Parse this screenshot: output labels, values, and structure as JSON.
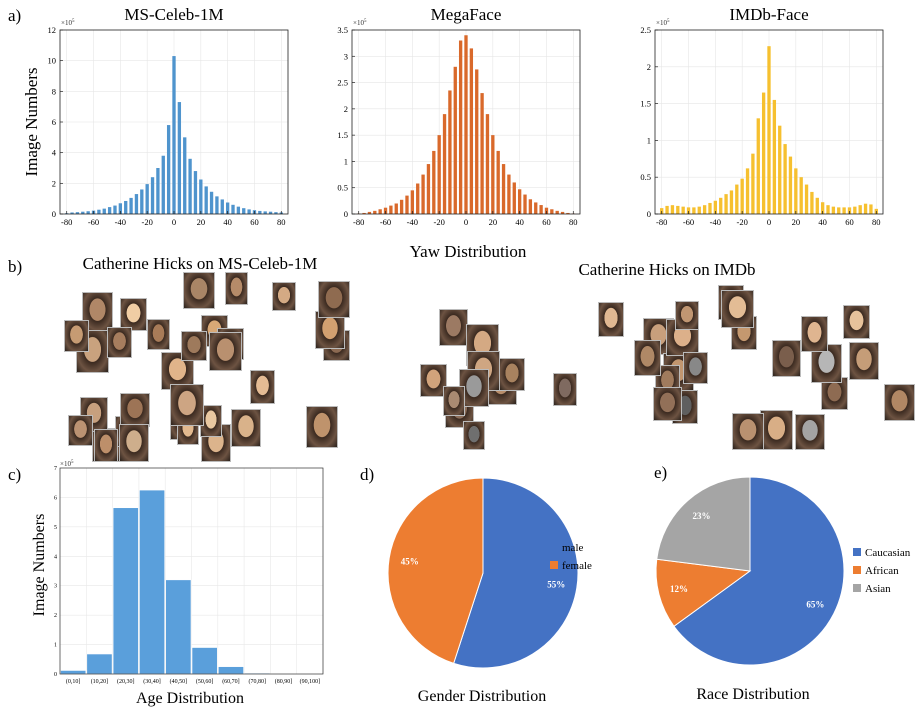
{
  "panels": {
    "a": {
      "tag": "a)",
      "ylabel": "Image Numbers",
      "xlabel": "Yaw Distribution"
    },
    "b": {
      "tag": "b)",
      "left_title": "Catherine Hicks on MS-Celeb-1M",
      "right_title": "Catherine Hicks on IMDb"
    },
    "c": {
      "tag": "c)"
    },
    "d": {
      "tag": "d)"
    },
    "e": {
      "tag": "e)"
    }
  },
  "chart_data": [
    {
      "id": "yaw-ms",
      "type": "bar",
      "title": "MS-Celeb-1M",
      "color": "#4f94cd",
      "xlim": [
        -85,
        85
      ],
      "ylim": [
        0,
        12
      ],
      "exponent": "×10^5",
      "x_ticks": [
        -80,
        -60,
        -40,
        -20,
        0,
        20,
        40,
        60,
        80
      ],
      "y_ticks": [
        0,
        2,
        4,
        6,
        8,
        10,
        12
      ],
      "x": [
        -80,
        -76,
        -72,
        -68,
        -64,
        -60,
        -56,
        -52,
        -48,
        -44,
        -40,
        -36,
        -32,
        -28,
        -24,
        -20,
        -16,
        -12,
        -8,
        -4,
        0,
        4,
        8,
        12,
        16,
        20,
        24,
        28,
        32,
        36,
        40,
        44,
        48,
        52,
        56,
        60,
        64,
        68,
        72,
        76,
        80
      ],
      "values": [
        0.05,
        0.1,
        0.12,
        0.15,
        0.18,
        0.22,
        0.28,
        0.35,
        0.45,
        0.55,
        0.7,
        0.85,
        1.05,
        1.3,
        1.6,
        1.95,
        2.4,
        3.0,
        3.8,
        5.8,
        10.3,
        7.3,
        5.0,
        3.6,
        2.8,
        2.25,
        1.8,
        1.45,
        1.15,
        0.95,
        0.75,
        0.6,
        0.48,
        0.38,
        0.3,
        0.25,
        0.2,
        0.17,
        0.15,
        0.12,
        0.1
      ]
    },
    {
      "id": "yaw-mega",
      "type": "bar",
      "title": "MegaFace",
      "color": "#d9692b",
      "xlim": [
        -85,
        85
      ],
      "ylim": [
        0,
        3.5
      ],
      "exponent": "×10^5",
      "x_ticks": [
        -80,
        -60,
        -40,
        -20,
        0,
        20,
        40,
        60,
        80
      ],
      "y_ticks": [
        0,
        0.5,
        1,
        1.5,
        2,
        2.5,
        3,
        3.5
      ],
      "x": [
        -80,
        -76,
        -72,
        -68,
        -64,
        -60,
        -56,
        -52,
        -48,
        -44,
        -40,
        -36,
        -32,
        -28,
        -24,
        -20,
        -16,
        -12,
        -8,
        -4,
        0,
        4,
        8,
        12,
        16,
        20,
        24,
        28,
        32,
        36,
        40,
        44,
        48,
        52,
        56,
        60,
        64,
        68,
        72,
        76,
        80
      ],
      "values": [
        0.01,
        0.02,
        0.04,
        0.06,
        0.09,
        0.12,
        0.16,
        0.2,
        0.27,
        0.35,
        0.45,
        0.58,
        0.75,
        0.95,
        1.2,
        1.5,
        1.9,
        2.35,
        2.8,
        3.3,
        3.4,
        3.15,
        2.75,
        2.3,
        1.9,
        1.5,
        1.2,
        0.95,
        0.75,
        0.6,
        0.47,
        0.37,
        0.28,
        0.22,
        0.17,
        0.12,
        0.09,
        0.06,
        0.04,
        0.02,
        0.01
      ]
    },
    {
      "id": "yaw-imdb",
      "type": "bar",
      "title": "IMDb-Face",
      "color": "#f6c02f",
      "xlim": [
        -85,
        85
      ],
      "ylim": [
        0,
        2.5
      ],
      "exponent": "×10^5",
      "x_ticks": [
        -80,
        -60,
        -40,
        -20,
        0,
        20,
        40,
        60,
        80
      ],
      "y_ticks": [
        0,
        0.5,
        1,
        1.5,
        2,
        2.5
      ],
      "x": [
        -80,
        -76,
        -72,
        -68,
        -64,
        -60,
        -56,
        -52,
        -48,
        -44,
        -40,
        -36,
        -32,
        -28,
        -24,
        -20,
        -16,
        -12,
        -8,
        -4,
        0,
        4,
        8,
        12,
        16,
        20,
        24,
        28,
        32,
        36,
        40,
        44,
        48,
        52,
        56,
        60,
        64,
        68,
        72,
        76,
        80
      ],
      "values": [
        0.08,
        0.11,
        0.12,
        0.11,
        0.1,
        0.09,
        0.09,
        0.1,
        0.12,
        0.15,
        0.18,
        0.22,
        0.27,
        0.32,
        0.4,
        0.48,
        0.62,
        0.82,
        1.3,
        1.65,
        2.28,
        1.55,
        1.2,
        0.95,
        0.78,
        0.62,
        0.5,
        0.4,
        0.3,
        0.22,
        0.16,
        0.12,
        0.1,
        0.09,
        0.09,
        0.09,
        0.1,
        0.12,
        0.14,
        0.13,
        0.07
      ]
    },
    {
      "id": "age",
      "type": "bar",
      "title": "",
      "color": "#5a9fdb",
      "xlabel": "Age Distribution",
      "ylabel": "Image Numbers",
      "exponent": "×10^5",
      "ylim": [
        0,
        7
      ],
      "y_ticks": [
        0,
        1,
        2,
        3,
        4,
        5,
        6,
        7
      ],
      "categories": [
        "(0,10]",
        "(10,20]",
        "(20,30]",
        "(30,40]",
        "(40,50]",
        "(50,60]",
        "(60,70]",
        "(70,80]",
        "(80,90]",
        "(90,100]"
      ],
      "values": [
        0.12,
        0.68,
        5.65,
        6.25,
        3.2,
        0.9,
        0.25,
        0.03,
        0.0,
        0.0
      ]
    },
    {
      "id": "gender",
      "type": "pie",
      "title": "Gender Distribution",
      "labels": [
        "male",
        "female"
      ],
      "values": [
        55,
        45
      ],
      "value_labels": [
        "55%",
        "45%"
      ],
      "colors": [
        "#4472c4",
        "#ed7d31"
      ],
      "legend": "right"
    },
    {
      "id": "race",
      "type": "pie",
      "title": "Race Distribution",
      "labels": [
        "Caucasian",
        "African",
        "Asian"
      ],
      "values": [
        65,
        12,
        23
      ],
      "value_labels": [
        "65%",
        "12%",
        "23%"
      ],
      "colors": [
        "#4472c4",
        "#ed7d31",
        "#a5a5a5"
      ],
      "legend": "right"
    }
  ],
  "faces": {
    "left": [
      "#c9a27e",
      "#e0b48a",
      "#b98a63",
      "#d8a876",
      "#a87b58",
      "#cfa37d",
      "#e6c29a",
      "#b08767",
      "#8c6a52",
      "#d2a070",
      "#c48f66",
      "#f0cda4",
      "#9d7456",
      "#bf936c",
      "#dcb48c",
      "#a67d5e",
      "#ceae8c",
      "#b9906f",
      "#e2b98f",
      "#c7a07e",
      "#8f6b50",
      "#d9b28a",
      "#bd8f6a",
      "#e8c7a0",
      "#a98566",
      "#c69b73",
      "#d4aa84",
      "#b58b69",
      "#9e7a5c",
      "#cda583",
      "#e4bb94",
      "#bb9272"
    ],
    "right": [
      "#b88d6a",
      "#9c7a63",
      "#d4a983",
      "#7f6a60",
      "#c89f7c",
      "#a4a4a4",
      "#e0b892",
      "#8c6e5a",
      "#c2966f",
      "#6f6f6f",
      "#dcb08a",
      "#b18764",
      "#cfa682",
      "#a07b5d",
      "#e7c29b",
      "#9a9a9a",
      "#c4986f",
      "#8e6b52",
      "#d8ae86",
      "#b99170",
      "#5f5f5f",
      "#cba07a",
      "#a8825f",
      "#e3bc95",
      "#927058",
      "#c59d78",
      "#b6b6b6",
      "#d1a37b",
      "#af8866",
      "#7a5e4c",
      "#dfb590",
      "#c09672",
      "#a98a72",
      "#888888"
    ]
  }
}
